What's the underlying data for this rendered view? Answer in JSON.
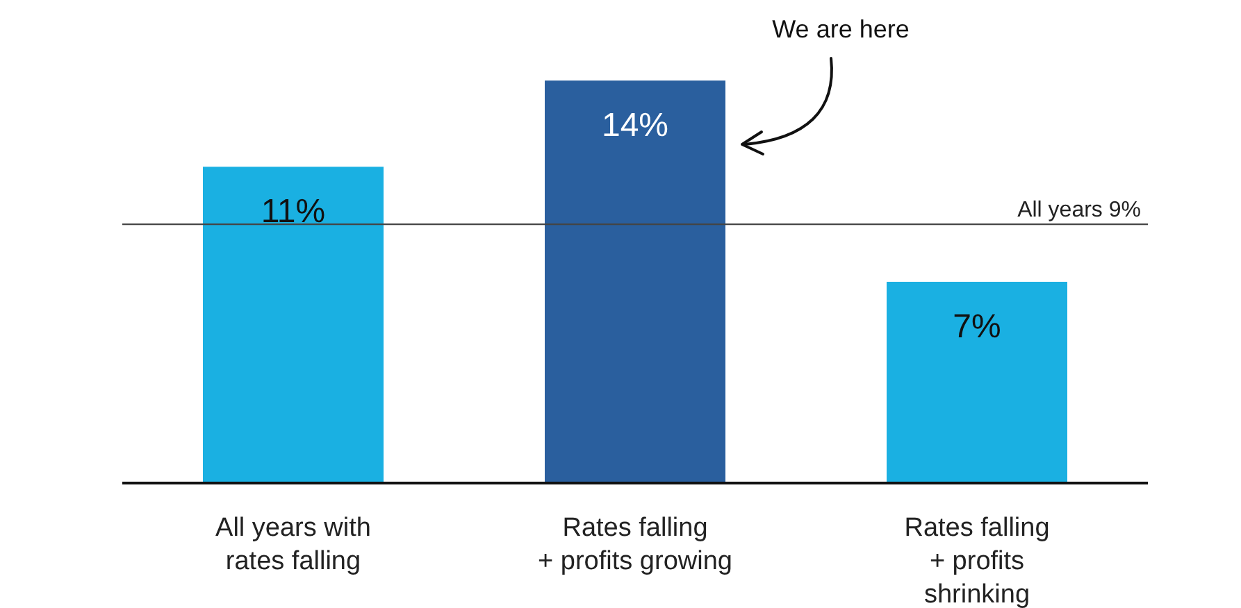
{
  "chart_data": {
    "type": "bar",
    "categories": [
      "All years with rates falling",
      "Rates falling + profits growing",
      "Rates falling + profits shrinking"
    ],
    "values": [
      11,
      14,
      7
    ],
    "colors": [
      "#1ab0e2",
      "#2a5f9e",
      "#1ab0e2"
    ],
    "value_labels": [
      "11%",
      "14%",
      "7%"
    ],
    "ref_lines": [
      {
        "axis": "y",
        "value": 9,
        "label": "All years 9%",
        "color": "#444444"
      }
    ],
    "annotations": [
      "We are here"
    ]
  }
}
